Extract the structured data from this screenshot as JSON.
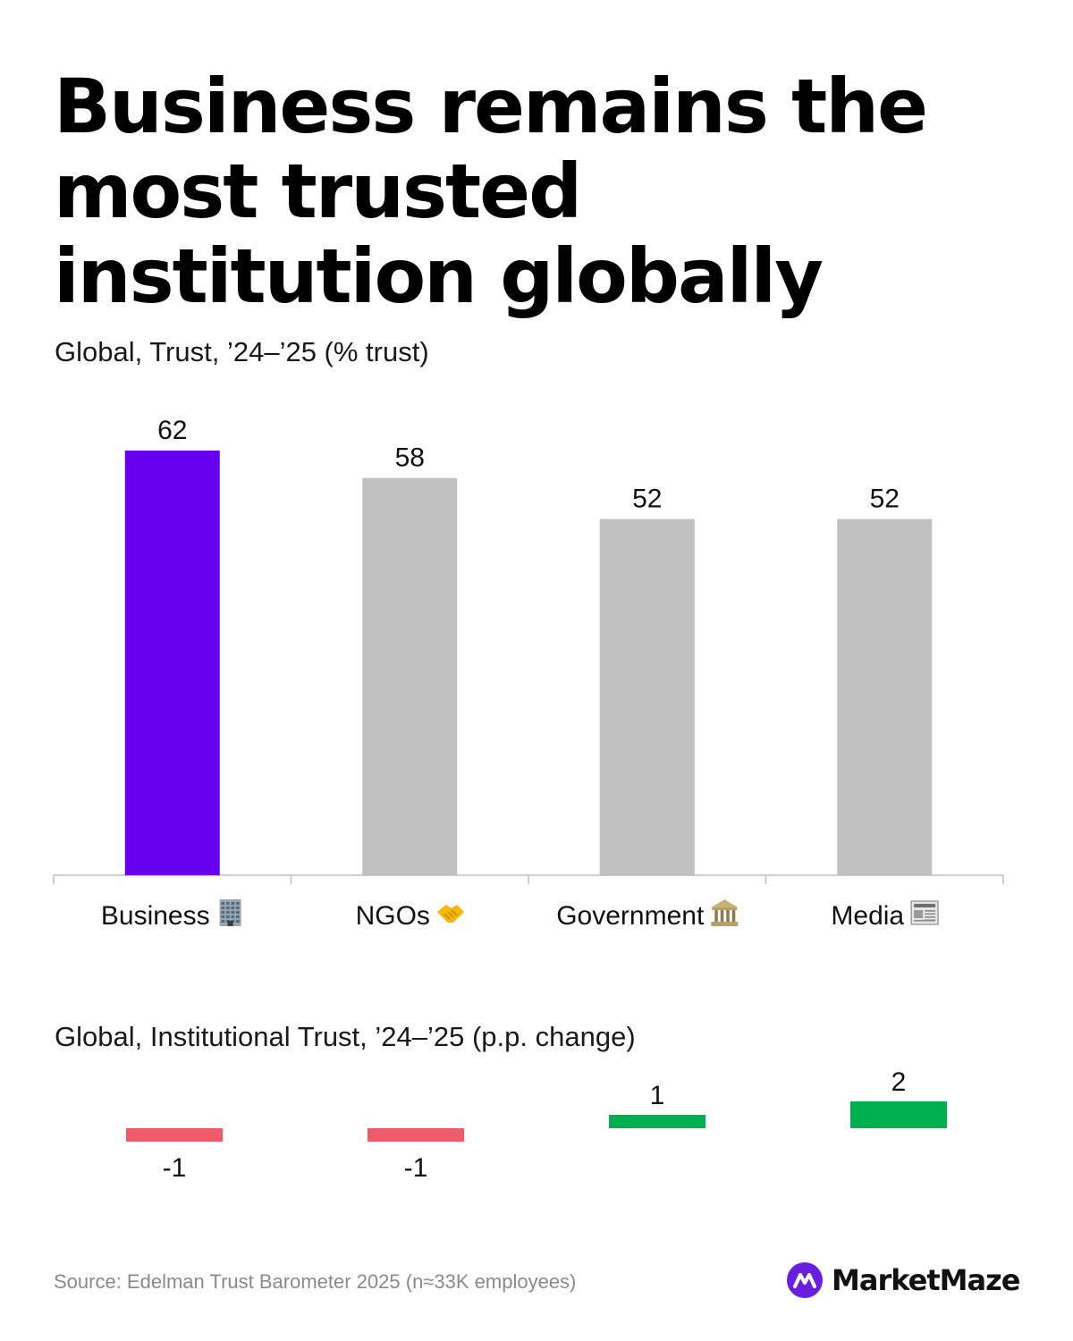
{
  "header": {
    "title": "Business remains the most trusted institution globally",
    "subtitle_trust": "Global, Trust, ’24–’25 (% trust)",
    "subtitle_change": "Global, Institutional Trust, ’24–’25 (p.p. change)"
  },
  "footer": {
    "source": "Source: Edelman Trust Barometer 2025 (n≈33K employees)",
    "brand": "MarketMaze"
  },
  "colors": {
    "highlight": "#6600ee",
    "neutral": "#c0c0c0",
    "negative": "#ef5b67",
    "positive": "#00b050",
    "brand": "#6a1fe0"
  },
  "chart_data": [
    {
      "type": "bar",
      "title": "Global, Trust, ’24–’25 (% trust)",
      "categories": [
        "Business",
        "NGOs",
        "Government",
        "Media"
      ],
      "category_icons": [
        "office-building-icon",
        "handshake-icon",
        "classical-building-icon",
        "newspaper-icon"
      ],
      "values": [
        62,
        58,
        52,
        52
      ],
      "highlight_index": 0,
      "ylim": [
        0,
        62
      ],
      "xlabel": "",
      "ylabel": "",
      "grid": false
    },
    {
      "type": "bar",
      "title": "Global, Institutional Trust, ’24–’25 (p.p. change)",
      "categories": [
        "Business",
        "NGOs",
        "Government",
        "Media"
      ],
      "values": [
        -1,
        -1,
        1,
        2
      ],
      "value_labels": [
        "-1",
        "-1",
        "1",
        "2"
      ],
      "xlabel": "",
      "ylabel": "",
      "grid": false
    }
  ]
}
